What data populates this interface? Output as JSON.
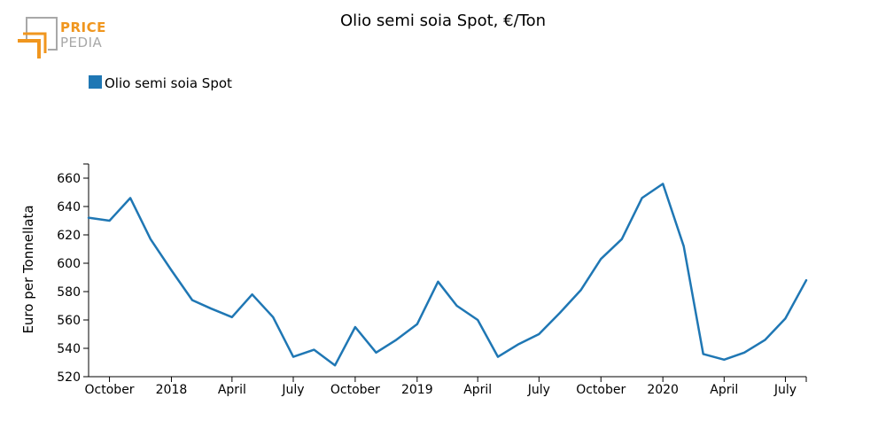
{
  "logo": {
    "word_top": "PRICE",
    "word_bottom": "PEDIA",
    "colors": {
      "orange": "#f0961e",
      "gray": "#a8a8a8"
    }
  },
  "chart_data": {
    "type": "line",
    "title": "Olio semi soia Spot, €/Ton",
    "ylabel": "Euro per Tonnellata",
    "xlabel": "",
    "legend_placement": "top-left",
    "grid": false,
    "ylim": [
      520,
      670
    ],
    "yticks": [
      520,
      540,
      560,
      580,
      600,
      620,
      640,
      660
    ],
    "xlim": [
      "2017-08-31",
      "2020-08-01"
    ],
    "xticks": [
      {
        "date": "2017-10-01",
        "label": "October"
      },
      {
        "date": "2018-01-01",
        "label": "2018"
      },
      {
        "date": "2018-04-01",
        "label": "April"
      },
      {
        "date": "2018-07-01",
        "label": "July"
      },
      {
        "date": "2018-10-01",
        "label": "October"
      },
      {
        "date": "2019-01-01",
        "label": "2019"
      },
      {
        "date": "2019-04-01",
        "label": "April"
      },
      {
        "date": "2019-07-01",
        "label": "July"
      },
      {
        "date": "2019-10-01",
        "label": "October"
      },
      {
        "date": "2020-01-01",
        "label": "2020"
      },
      {
        "date": "2020-04-01",
        "label": "April"
      },
      {
        "date": "2020-07-01",
        "label": "July"
      }
    ],
    "series": [
      {
        "name": "Olio semi soia Spot",
        "color": "#1f77b4",
        "points": [
          {
            "x": "2017-08-31",
            "y": 632
          },
          {
            "x": "2017-09-01",
            "y": 632
          },
          {
            "x": "2017-10-01",
            "y": 630
          },
          {
            "x": "2017-11-01",
            "y": 646
          },
          {
            "x": "2017-12-01",
            "y": 617
          },
          {
            "x": "2018-01-01",
            "y": 595
          },
          {
            "x": "2018-02-01",
            "y": 574
          },
          {
            "x": "2018-03-01",
            "y": 568
          },
          {
            "x": "2018-04-01",
            "y": 562
          },
          {
            "x": "2018-05-01",
            "y": 578
          },
          {
            "x": "2018-06-01",
            "y": 562
          },
          {
            "x": "2018-07-01",
            "y": 534
          },
          {
            "x": "2018-08-01",
            "y": 539
          },
          {
            "x": "2018-09-01",
            "y": 528
          },
          {
            "x": "2018-10-01",
            "y": 555
          },
          {
            "x": "2018-11-01",
            "y": 537
          },
          {
            "x": "2018-12-01",
            "y": 546
          },
          {
            "x": "2019-01-01",
            "y": 557
          },
          {
            "x": "2019-02-01",
            "y": 587
          },
          {
            "x": "2019-03-01",
            "y": 570
          },
          {
            "x": "2019-04-01",
            "y": 560
          },
          {
            "x": "2019-05-01",
            "y": 534
          },
          {
            "x": "2019-06-01",
            "y": 543
          },
          {
            "x": "2019-07-01",
            "y": 550
          },
          {
            "x": "2019-08-01",
            "y": 565
          },
          {
            "x": "2019-09-01",
            "y": 581
          },
          {
            "x": "2019-10-01",
            "y": 603
          },
          {
            "x": "2019-11-01",
            "y": 617
          },
          {
            "x": "2019-12-01",
            "y": 646
          },
          {
            "x": "2020-01-01",
            "y": 656
          },
          {
            "x": "2020-02-01",
            "y": 612
          },
          {
            "x": "2020-03-01",
            "y": 536
          },
          {
            "x": "2020-04-01",
            "y": 532
          },
          {
            "x": "2020-05-01",
            "y": 537
          },
          {
            "x": "2020-06-01",
            "y": 546
          },
          {
            "x": "2020-07-01",
            "y": 561
          },
          {
            "x": "2020-08-01",
            "y": 588
          }
        ]
      }
    ]
  }
}
